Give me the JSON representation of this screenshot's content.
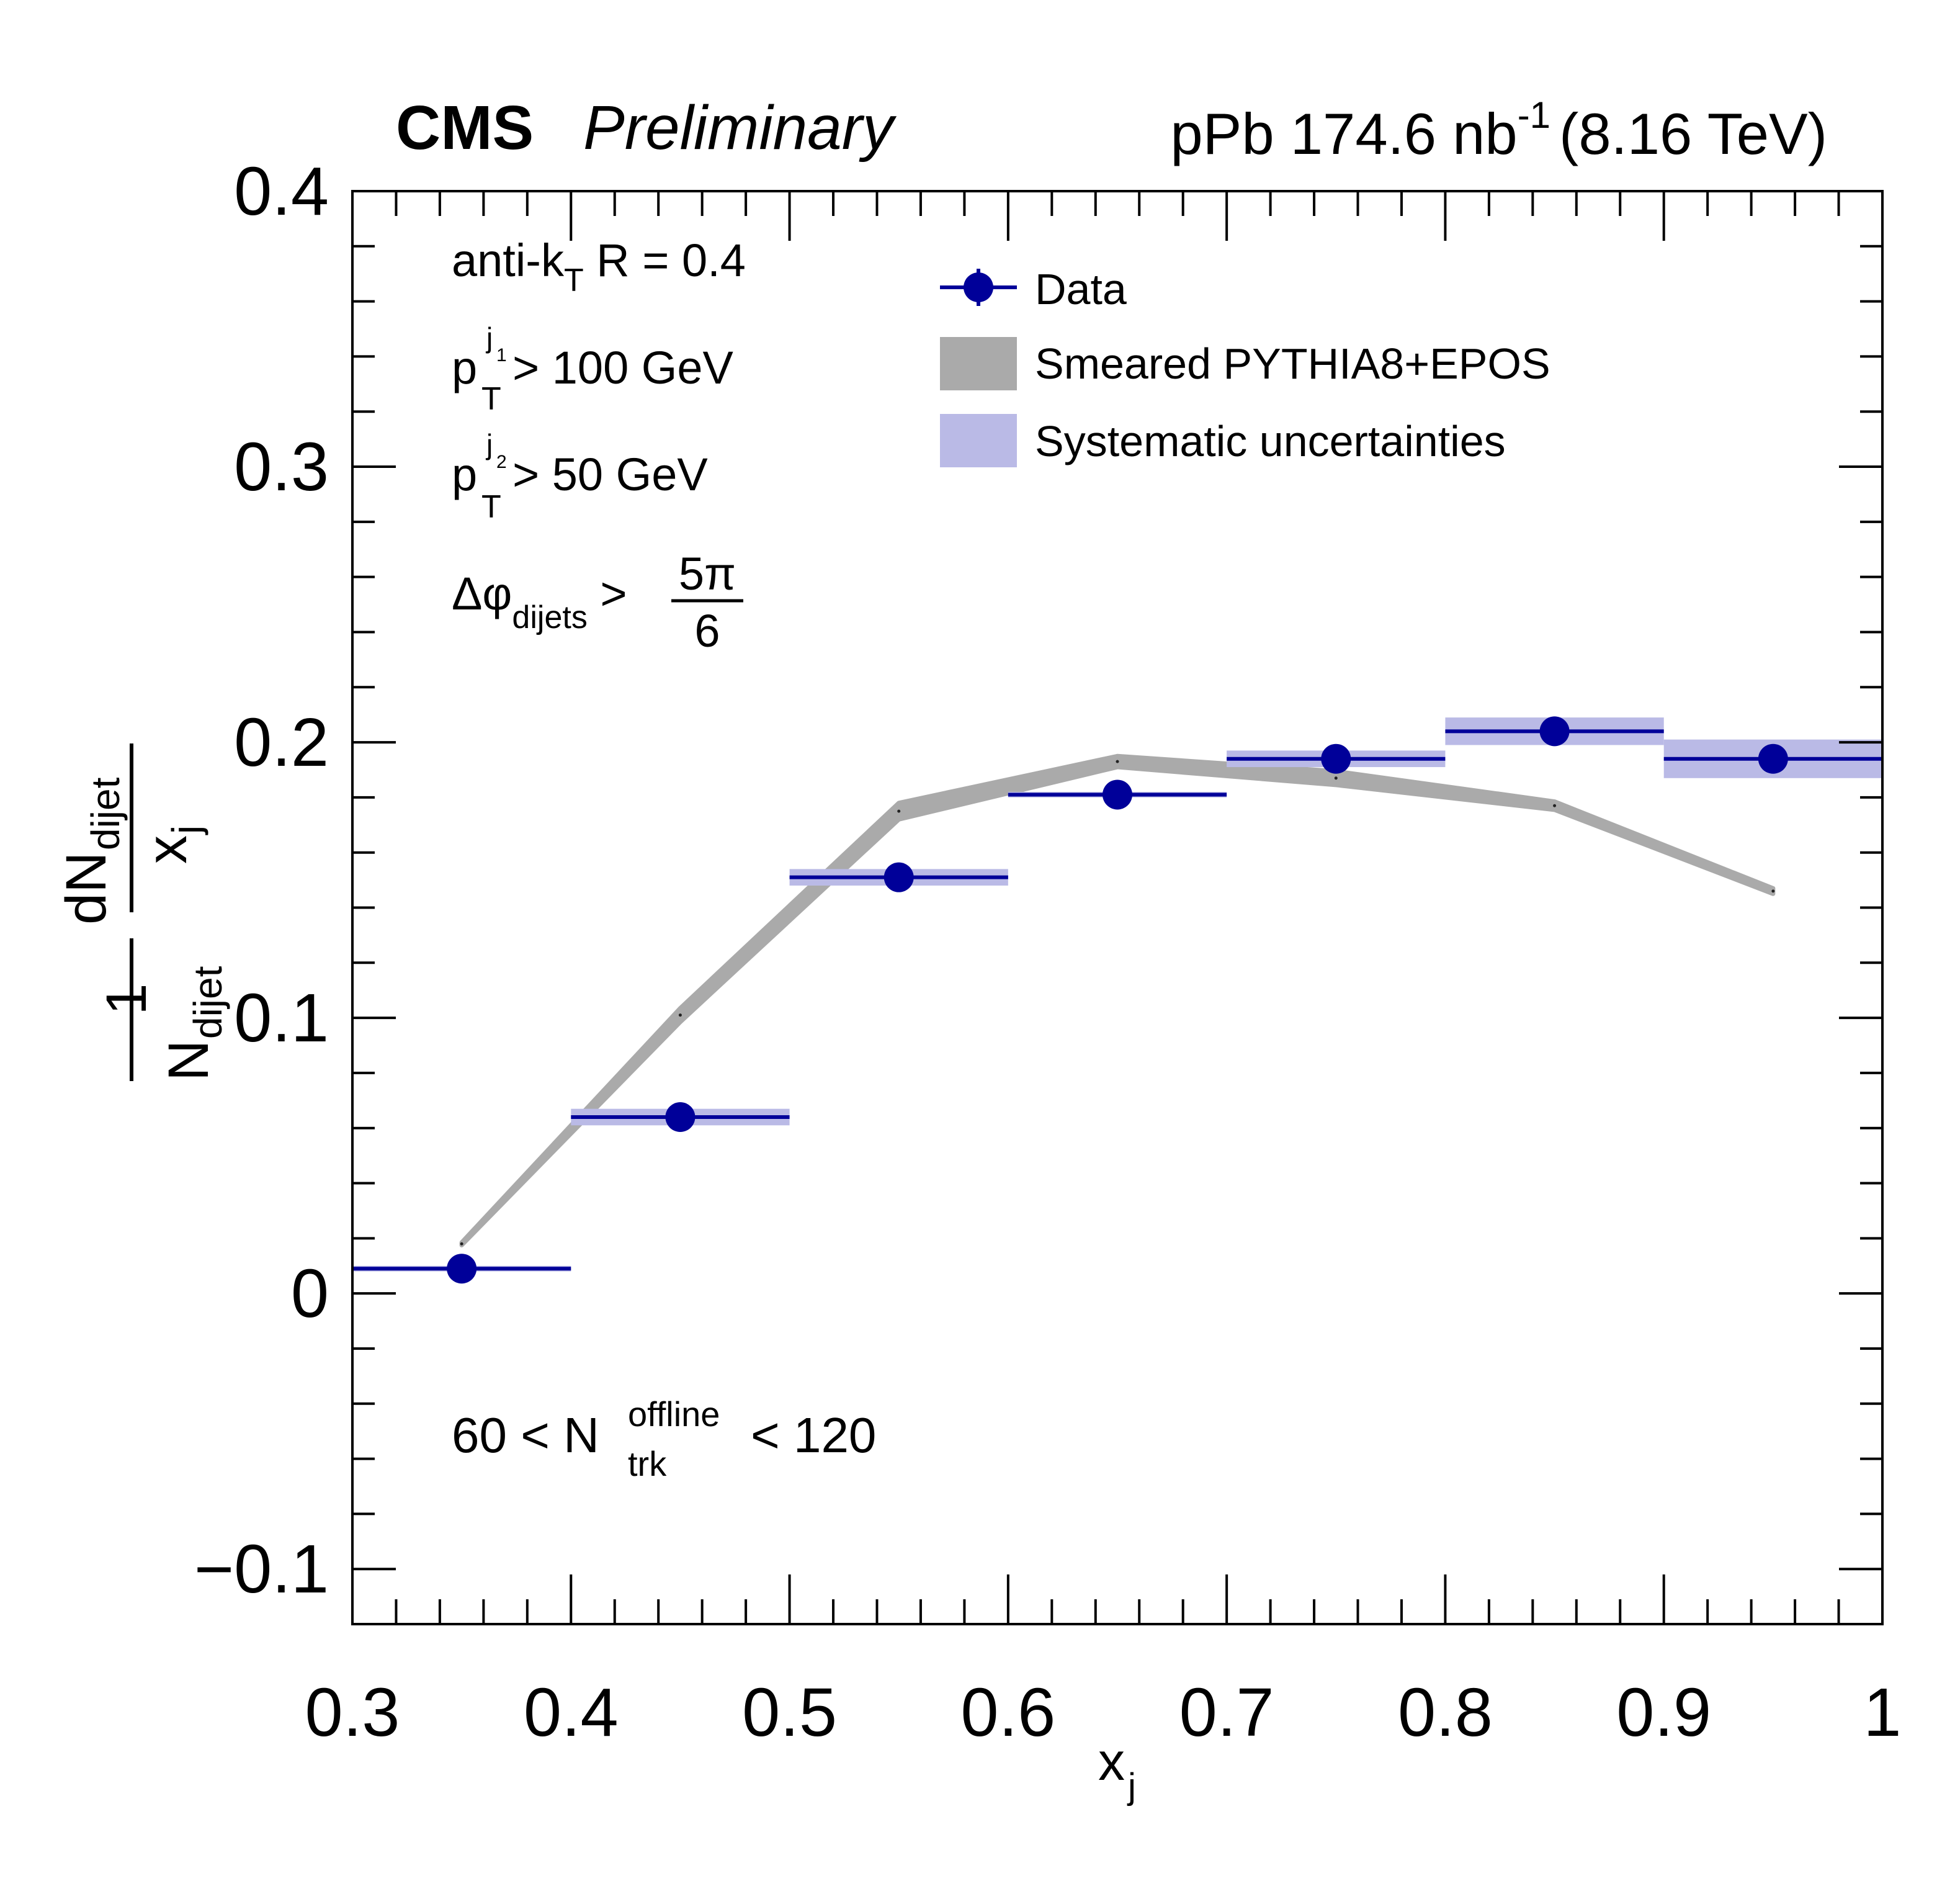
{
  "header": {
    "experiment": "CMS",
    "status": "Preliminary",
    "lumi_prefix": "pPb 174.6 nb",
    "lumi_exp": "-1",
    "energy": "(8.16 TeV)"
  },
  "annotations": {
    "algo_prefix": "anti-k",
    "algo_sub": "T",
    "algo_suffix": " R = 0.4",
    "pt": "p",
    "pt_sub": "T",
    "jet1_sup": "j",
    "jet1_idx": "1",
    "cut1": " > 100 GeV",
    "jet2_sup": "j",
    "jet2_idx": "2",
    "cut2": " > 50 GeV",
    "dphi": "Δφ",
    "dphi_sub": "dijets",
    "dphi_gt": " > ",
    "dphi_num": "5π",
    "dphi_den": "6",
    "mult_left": "60 < N",
    "mult_sup": "offline",
    "mult_sub": "trk",
    "mult_right": " < 120"
  },
  "axes": {
    "x_label": "x",
    "x_label_sub": "j",
    "y_one": "1",
    "y_N": "N",
    "y_N_sub": "dijet",
    "y_dN": "dN",
    "y_dN_sub": "dijet",
    "y_x": "x",
    "y_x_sub": "j"
  },
  "legend": {
    "data": "Data",
    "model": "Smeared PYTHIA8+EPOS",
    "syst": "Systematic uncertainties"
  },
  "colors": {
    "data": "#000099",
    "syst": "#babae6",
    "model": "#aaaaaa"
  },
  "chart_data": {
    "type": "scatter",
    "xlim": [
      0.3,
      1.0
    ],
    "ylim": [
      -0.12,
      0.4
    ],
    "x_ticks": [
      0.3,
      0.4,
      0.5,
      0.6,
      0.7,
      0.8,
      0.9,
      1.0
    ],
    "x_tick_labels": [
      "0.3",
      "0.4",
      "0.5",
      "0.6",
      "0.7",
      "0.8",
      "0.9",
      "1"
    ],
    "y_ticks": [
      -0.1,
      0.0,
      0.1,
      0.2,
      0.3,
      0.4
    ],
    "y_tick_labels": [
      "−0.1",
      "0",
      "0.1",
      "0.2",
      "0.3",
      "0.4"
    ],
    "grid": false,
    "legend_position": "top-right",
    "series": [
      {
        "name": "Data",
        "style": "points",
        "x": [
          0.35,
          0.45,
          0.55,
          0.65,
          0.75,
          0.85,
          0.95
        ],
        "x_low": [
          0.3,
          0.4,
          0.5,
          0.6,
          0.7,
          0.8,
          0.9
        ],
        "x_high": [
          0.4,
          0.5,
          0.6,
          0.7,
          0.8,
          0.9,
          1.0
        ],
        "y": [
          0.009,
          0.064,
          0.151,
          0.181,
          0.194,
          0.204,
          0.194
        ],
        "syst": [
          0.001,
          0.003,
          0.003,
          0.001,
          0.003,
          0.005,
          0.007
        ]
      },
      {
        "name": "Smeared PYTHIA8+EPOS",
        "style": "band",
        "x": [
          0.35,
          0.45,
          0.55,
          0.65,
          0.75,
          0.85,
          0.95
        ],
        "y": [
          0.018,
          0.101,
          0.175,
          0.193,
          0.187,
          0.177,
          0.146
        ],
        "unc": [
          0.0005,
          0.0025,
          0.003,
          0.002,
          0.0025,
          0.0015,
          0.001
        ]
      }
    ]
  }
}
